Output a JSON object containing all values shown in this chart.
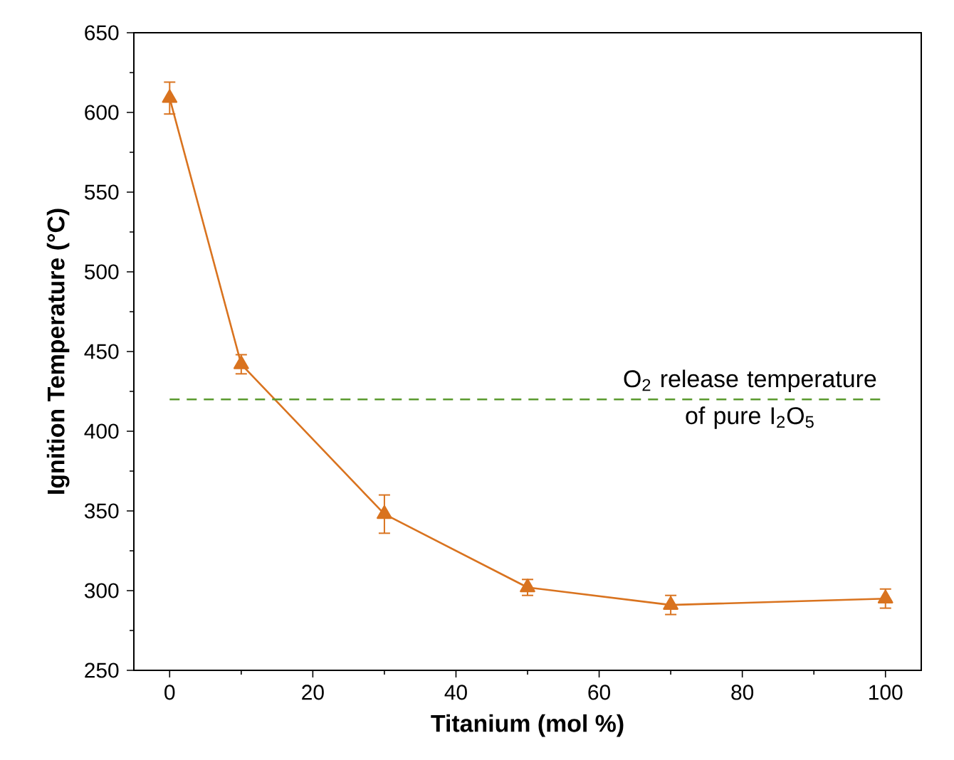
{
  "chart_data": {
    "type": "line",
    "xlabel": "Titanium (mol %)",
    "ylabel": "Ignition Temperature (°C)",
    "x": [
      0,
      10,
      30,
      50,
      70,
      100
    ],
    "series": [
      {
        "color": "#d9731f",
        "values": [
          609,
          442,
          348,
          302,
          291,
          295
        ],
        "errors": [
          10,
          6,
          12,
          5,
          6,
          6
        ]
      }
    ],
    "marker": "triangle",
    "line_style": "solid",
    "xlim": [
      -5,
      105
    ],
    "xticks": [
      0,
      20,
      40,
      60,
      80,
      100
    ],
    "ylim": [
      250,
      650
    ],
    "yticks": [
      250,
      300,
      350,
      400,
      450,
      500,
      550,
      600,
      650
    ],
    "ref_lines": [
      {
        "axis": "y",
        "value": 420,
        "label": "O$_{2}$ release temperature of pure I$_{2}$O$_{5}$",
        "color": "#5a9a2e",
        "line_style": "dashed"
      }
    ]
  }
}
